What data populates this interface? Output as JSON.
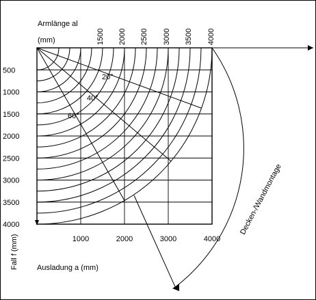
{
  "chart_data": {
    "type": "diagram",
    "arm_length_label_line1": "Armlänge al",
    "arm_length_label_line2": "(mm)",
    "arm_length_values": [
      "1500",
      "2000",
      "2500",
      "3000",
      "3500",
      "4000"
    ],
    "drop_label": "Fall f (mm)",
    "drop_ticks": [
      "500",
      "1000",
      "1500",
      "2000",
      "2500",
      "3000",
      "3500",
      "4000"
    ],
    "reach_label": "Ausladung a (mm)",
    "reach_ticks": [
      "1000",
      "2000",
      "3000",
      "4000"
    ],
    "angle_labels": [
      "20°",
      "40°",
      "60°"
    ],
    "angles_deg": [
      20,
      40,
      60
    ],
    "mounting_label": "Decken-/Wandmontage",
    "arm_lengths_mm": [
      500,
      750,
      1000,
      1250,
      1500,
      1750,
      2000,
      2250,
      2500,
      2750,
      3000,
      3250,
      3500,
      3750,
      4000
    ],
    "reach_max_mm": 4000,
    "drop_max_mm": 4000
  }
}
